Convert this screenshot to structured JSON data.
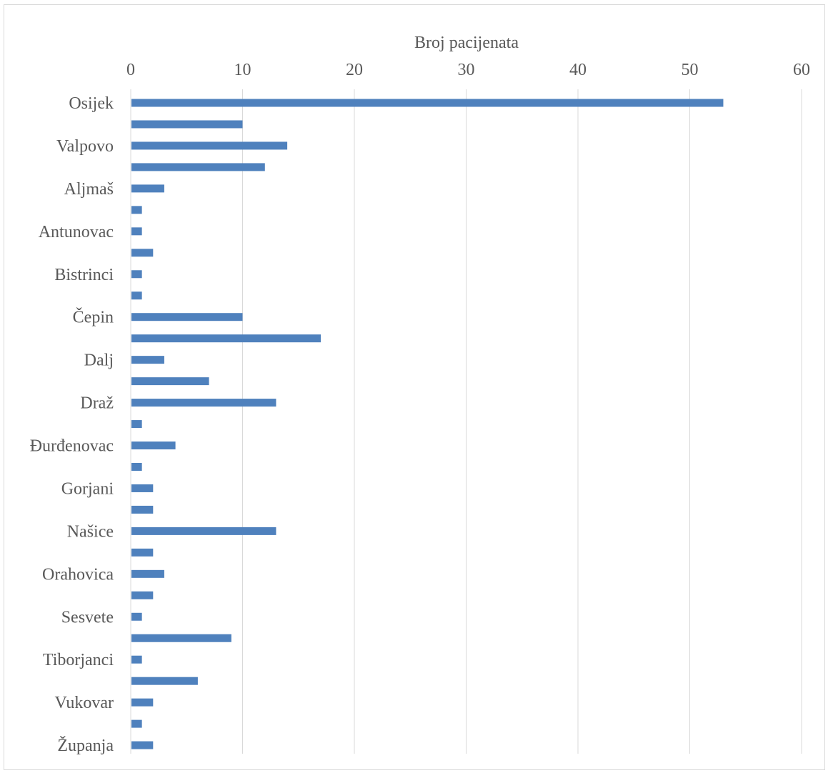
{
  "chart_data": {
    "type": "bar",
    "orientation": "horizontal",
    "xlabel": "Broj pacijenata",
    "xlim": [
      0,
      60
    ],
    "xticks": [
      0,
      10,
      20,
      30,
      40,
      50,
      60
    ],
    "xaxis_position": "top",
    "grid": true,
    "bar_color": "#4f81bd",
    "categories": [
      "Osijek",
      "",
      "Valpovo",
      "",
      "Aljmaš",
      "",
      "Antunovac",
      "",
      "Bistrinci",
      "",
      "Čepin",
      "",
      "Dalj",
      "",
      "Draž",
      "",
      "Đurđenovac",
      "",
      "Gorjani",
      "",
      "Našice",
      "",
      "Orahovica",
      "",
      "Sesvete",
      "",
      "Tiborjanci",
      "",
      "Vukovar",
      "",
      "Županja"
    ],
    "values": [
      53,
      10,
      14,
      12,
      3,
      1,
      1,
      2,
      1,
      1,
      10,
      17,
      3,
      7,
      13,
      1,
      4,
      1,
      2,
      2,
      13,
      2,
      3,
      2,
      1,
      9,
      1,
      6,
      2,
      1,
      2
    ]
  }
}
